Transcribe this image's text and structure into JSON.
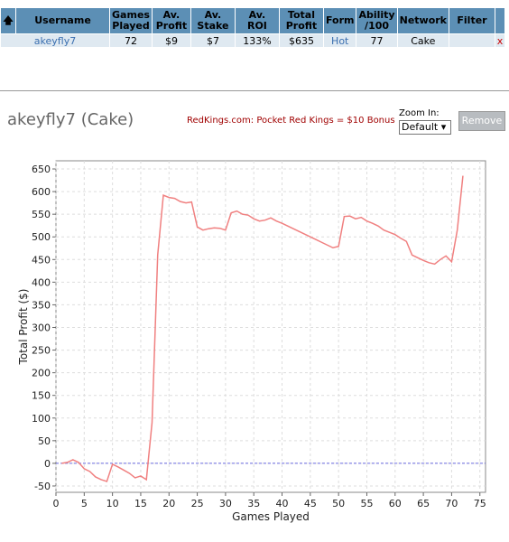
{
  "table": {
    "columns": [
      "Username",
      "Games Played",
      "Av. Profit",
      "Av. Stake",
      "Av. ROI",
      "Total Profit",
      "Form",
      "Ability /100",
      "Network",
      "Filter"
    ],
    "row": [
      "akeyfly7",
      "72",
      "$9",
      "$7",
      "133%",
      "$635",
      "Hot",
      "77",
      "Cake"
    ],
    "remove": "x"
  },
  "header": {
    "title": "akeyfly7 (Cake)",
    "ad": "RedKings.com: Pocket Red Kings = $10 Bonus",
    "zoom_label": "Zoom In:",
    "zoom_option": "Default",
    "button": "Remove"
  },
  "chart_data": {
    "type": "line",
    "x_label": "Games Played",
    "y_label": "Total Profit ($)",
    "x": [
      1,
      2,
      3,
      4,
      5,
      6,
      7,
      8,
      9,
      10,
      11,
      12,
      13,
      14,
      15,
      16,
      17,
      18,
      19,
      20,
      21,
      22,
      23,
      24,
      25,
      26,
      27,
      28,
      29,
      30,
      31,
      32,
      33,
      34,
      35,
      36,
      37,
      38,
      39,
      40,
      41,
      42,
      43,
      44,
      45,
      46,
      47,
      48,
      49,
      50,
      51,
      52,
      53,
      54,
      55,
      56,
      57,
      58,
      59,
      60,
      61,
      62,
      63,
      64,
      65,
      66,
      67,
      68,
      69,
      70,
      71,
      72
    ],
    "series": [
      {
        "name": "akeyfly7",
        "color": "#f08080",
        "values": [
          0,
          2,
          8,
          2,
          -12,
          -18,
          -30,
          -36,
          -40,
          -2,
          -8,
          -15,
          -22,
          -32,
          -28,
          -36,
          90,
          460,
          592,
          587,
          585,
          578,
          575,
          577,
          522,
          515,
          518,
          520,
          519,
          515,
          553,
          557,
          550,
          548,
          540,
          535,
          537,
          542,
          535,
          530,
          524,
          518,
          512,
          506,
          500,
          494,
          488,
          482,
          476,
          479,
          545,
          546,
          540,
          543,
          535,
          530,
          524,
          515,
          510,
          505,
          497,
          490,
          460,
          454,
          448,
          443,
          440,
          450,
          458,
          445,
          515,
          635
        ]
      }
    ],
    "reference_line": 0,
    "reference_color": "#6a6ae0",
    "xlim": [
      0,
      76
    ],
    "ylim": [
      -64,
      668
    ],
    "xticks": [
      0,
      5,
      10,
      15,
      20,
      25,
      30,
      35,
      40,
      45,
      50,
      55,
      60,
      65,
      70,
      75
    ],
    "yticks": [
      -50,
      0,
      50,
      100,
      150,
      200,
      250,
      300,
      350,
      400,
      450,
      500,
      550,
      600,
      650
    ],
    "grid": true
  }
}
